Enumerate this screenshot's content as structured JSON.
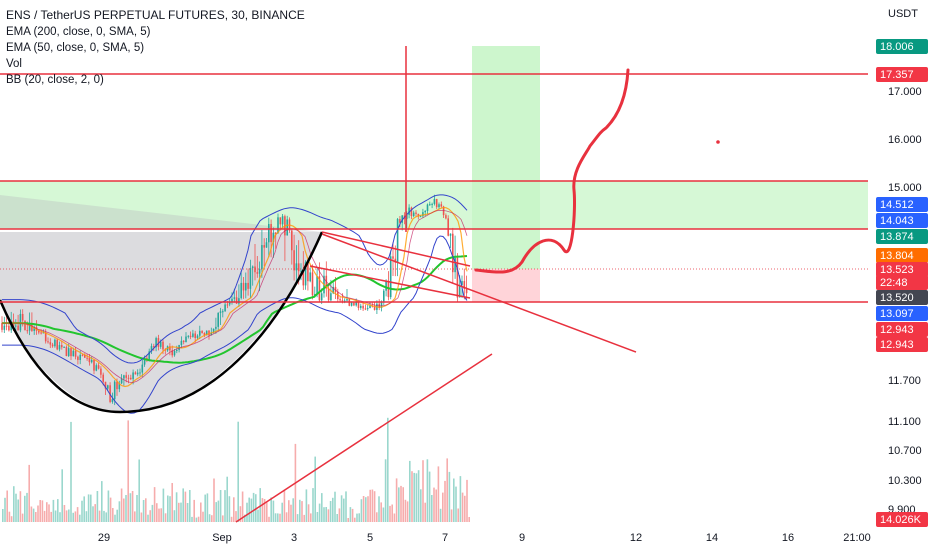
{
  "header": {
    "title": "ENS / TetherUS PERPETUAL FUTURES, 30, BINANCE",
    "indicators": [
      "EMA (200, close, 0, SMA, 5)",
      "EMA (50, close, 0, SMA, 5)",
      "Vol",
      "BB (20, close, 2, 0)"
    ]
  },
  "chart_data": {
    "type": "line",
    "title": "ENS / TetherUS PERPETUAL FUTURES, 30, BINANCE",
    "y_unit": "USDT",
    "y_ticks": [
      17.0,
      16.0,
      15.0,
      11.7,
      11.1,
      10.7,
      10.3,
      9.9
    ],
    "x_ticks": [
      "29",
      "Sep",
      "3",
      "5",
      "7",
      "9",
      "12",
      "14",
      "16",
      "21:00"
    ],
    "grid": false,
    "scale_note": "price axis with nonlinear spacing at lower values",
    "price_series": {
      "name": "ENSUSDT 30m (approx close)",
      "x": [
        "27",
        "28",
        "28",
        "29",
        "29",
        "30",
        "30",
        "31",
        "31",
        "Sep",
        "Sep",
        "2",
        "2",
        "3",
        "3",
        "4",
        "4",
        "5",
        "5",
        "6",
        "6",
        "6",
        "7",
        "7",
        "7",
        "7"
      ],
      "y": [
        13.0,
        12.7,
        12.4,
        12.1,
        11.5,
        11.9,
        12.6,
        12.4,
        12.8,
        12.9,
        13.3,
        13.6,
        13.9,
        14.05,
        13.7,
        13.55,
        13.5,
        13.3,
        13.2,
        13.9,
        14.3,
        14.1,
        14.6,
        14.3,
        13.8,
        13.52
      ]
    },
    "levels": [
      {
        "label": "18.006",
        "color": "#089981",
        "kind": "take-profit"
      },
      {
        "label": "17.357",
        "color": "#f23645",
        "kind": "horizontal-line"
      },
      {
        "label": "14.512",
        "color": "#2962ff",
        "kind": "bb-upper"
      },
      {
        "label": "14.043",
        "color": "#2962ff",
        "kind": "bb-basis"
      },
      {
        "label": "13.874",
        "color": "#089981",
        "kind": "ema-50"
      },
      {
        "label": "13.804",
        "color": "#ff6d00",
        "kind": "ema-200"
      },
      {
        "label": "13.523",
        "color": "#f23645",
        "kind": "last-price"
      },
      {
        "label": "22:48",
        "color": "#f23645",
        "kind": "countdown"
      },
      {
        "label": "13.520",
        "color": "#434651",
        "kind": "crosshair"
      },
      {
        "label": "13.097",
        "color": "#2962ff",
        "kind": "bb-lower"
      },
      {
        "label": "12.943",
        "color": "#f23645",
        "kind": "stop"
      },
      {
        "label": "12.943",
        "color": "#f23645",
        "kind": "stop-line"
      },
      {
        "label": "14.026K",
        "color": "#f23645",
        "kind": "volume"
      }
    ],
    "colors": {
      "up": "#26a69a",
      "down": "#ef5350",
      "ema_green": "#22c52e",
      "bb": "#3344cc",
      "drawing_red": "#e8313e",
      "zone_green": "#c8f5c8"
    }
  }
}
